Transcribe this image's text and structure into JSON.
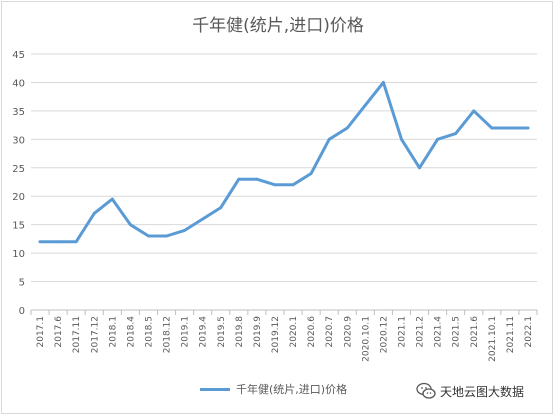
{
  "chart_data": {
    "type": "line",
    "title": "千年健(统片,进口)价格",
    "categories": [
      "2017.1",
      "2017.6",
      "2017.11",
      "2017.12",
      "2018.1",
      "2018.4",
      "2018.5",
      "2018.12",
      "2019.1",
      "2019.4",
      "2019.5",
      "2019.8",
      "2019.9",
      "2019.12",
      "2020.1",
      "2020.6",
      "2020.7",
      "2020.9",
      "2020.10.1",
      "2020.12",
      "2021.1",
      "2021.2",
      "2021.4",
      "2021.5",
      "2021.6",
      "2021.10.1",
      "2021.11",
      "2022.1"
    ],
    "series": [
      {
        "name": "千年健(统片,进口)价格",
        "values": [
          12,
          12,
          12,
          17,
          19.5,
          15,
          13,
          13,
          14,
          16,
          18,
          23,
          23,
          22,
          22,
          24,
          30,
          32,
          36,
          40,
          30,
          25,
          30,
          31,
          35,
          32,
          32,
          32
        ]
      }
    ],
    "ylim": [
      0,
      45
    ],
    "yticks": [
      0,
      5,
      10,
      15,
      20,
      25,
      30,
      35,
      40,
      45
    ],
    "grid": true,
    "legend_position": "bottom",
    "color": "#5b9bd5"
  },
  "watermark": {
    "text": "天地云图大数据",
    "icon": "wechat-icon"
  }
}
